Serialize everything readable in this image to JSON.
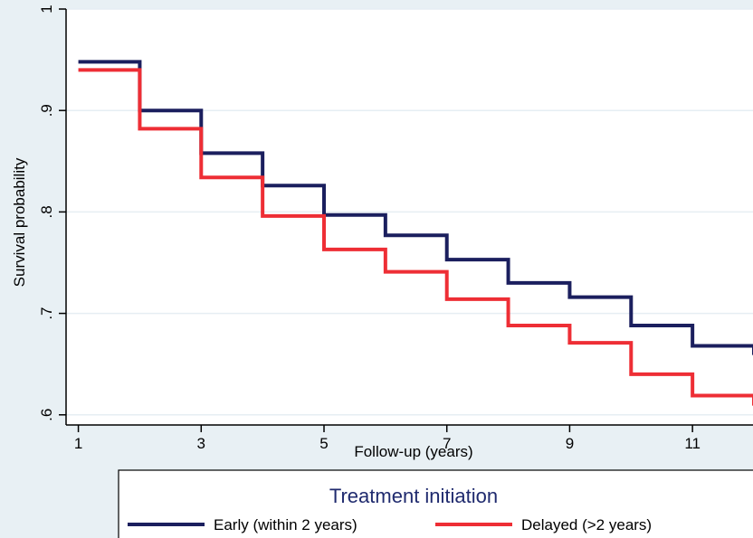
{
  "chart_data": {
    "type": "line",
    "step": true,
    "xlabel": "Follow-up (years)",
    "ylabel": "Survival probability",
    "xlim": [
      0.8,
      12
    ],
    "ylim": [
      0.59,
      1.0
    ],
    "xticks": [
      1,
      3,
      5,
      7,
      9,
      11
    ],
    "xtick_labels": [
      "1",
      "3",
      "5",
      "7",
      "9",
      "11"
    ],
    "yticks": [
      0.6,
      0.7,
      0.8,
      0.9,
      1.0
    ],
    "ytick_labels": [
      ".6",
      ".7",
      ".8",
      ".9",
      "1"
    ],
    "grid": true,
    "legend": {
      "title": "Treatment initiation",
      "placement": "bottom"
    },
    "series": [
      {
        "name": "Early (within 2 years)",
        "color": "#1b1f5e",
        "x": [
          1,
          2,
          3,
          4,
          5,
          6,
          7,
          8,
          9,
          10,
          11,
          12
        ],
        "y": [
          0.948,
          0.9,
          0.858,
          0.826,
          0.797,
          0.777,
          0.753,
          0.73,
          0.716,
          0.688,
          0.668,
          0.659
        ]
      },
      {
        "name": "Delayed (>2 years)",
        "color": "#ee2e35",
        "x": [
          1,
          2,
          3,
          4,
          5,
          6,
          7,
          8,
          9,
          10,
          11,
          12
        ],
        "y": [
          0.94,
          0.882,
          0.834,
          0.796,
          0.763,
          0.741,
          0.714,
          0.688,
          0.671,
          0.64,
          0.619,
          0.609
        ]
      }
    ]
  }
}
